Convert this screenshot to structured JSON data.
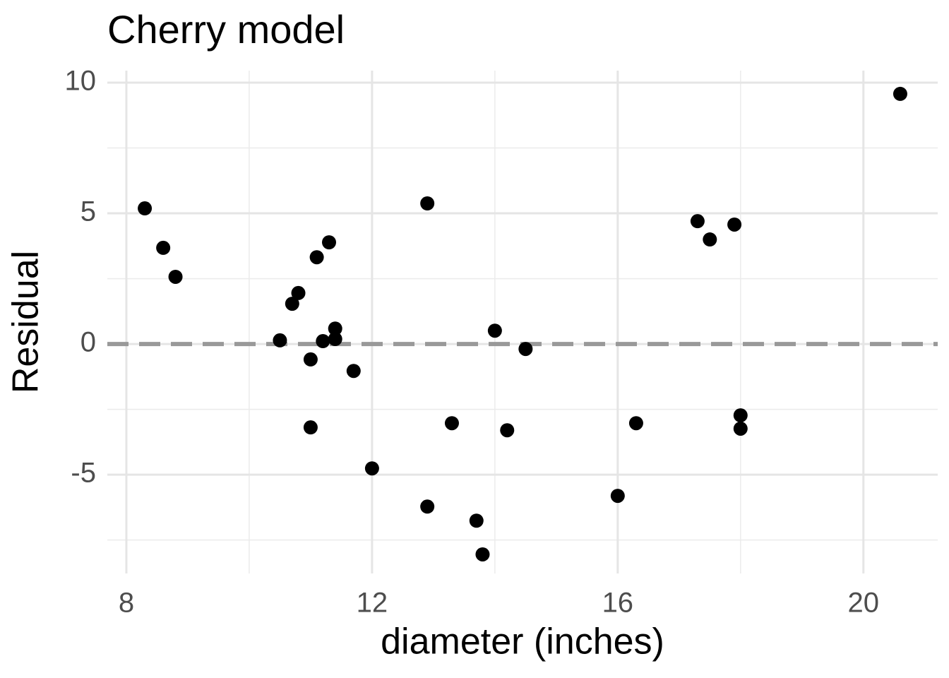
{
  "chart_data": {
    "type": "scatter",
    "title": "Cherry model",
    "x_label": "diameter (inches)",
    "y_label": "Residual",
    "x": [
      8.3,
      8.6,
      8.8,
      10.5,
      10.7,
      10.8,
      11.0,
      11.0,
      11.1,
      11.2,
      11.3,
      11.4,
      11.4,
      11.7,
      12.0,
      12.9,
      12.9,
      13.3,
      13.7,
      13.8,
      14.0,
      14.2,
      14.5,
      16.0,
      16.3,
      17.3,
      17.5,
      17.9,
      18.0,
      18.0,
      20.6
    ],
    "values": [
      5.19,
      3.68,
      2.57,
      0.14,
      1.54,
      1.95,
      -0.59,
      -3.19,
      3.32,
      0.11,
      3.89,
      0.59,
      0.19,
      -1.03,
      -4.76,
      5.38,
      -6.22,
      -3.03,
      -6.76,
      -8.05,
      0.51,
      -3.3,
      -0.19,
      -5.81,
      -3.03,
      4.7,
      4.0,
      4.57,
      -2.73,
      -3.24,
      9.57
    ],
    "color": "#000000",
    "xlim": [
      7.69,
      21.21
    ],
    "ylim": [
      -8.78,
      10.46
    ],
    "xticks": [
      8,
      12,
      16,
      20
    ],
    "yticks": [
      -5,
      0,
      5,
      10
    ],
    "x_minor_grid": [
      10,
      14,
      18
    ],
    "y_minor_grid": [
      -7.5,
      -2.5,
      2.5,
      7.5
    ],
    "grid": true,
    "hline": {
      "value": 0,
      "color": "#999999"
    }
  }
}
